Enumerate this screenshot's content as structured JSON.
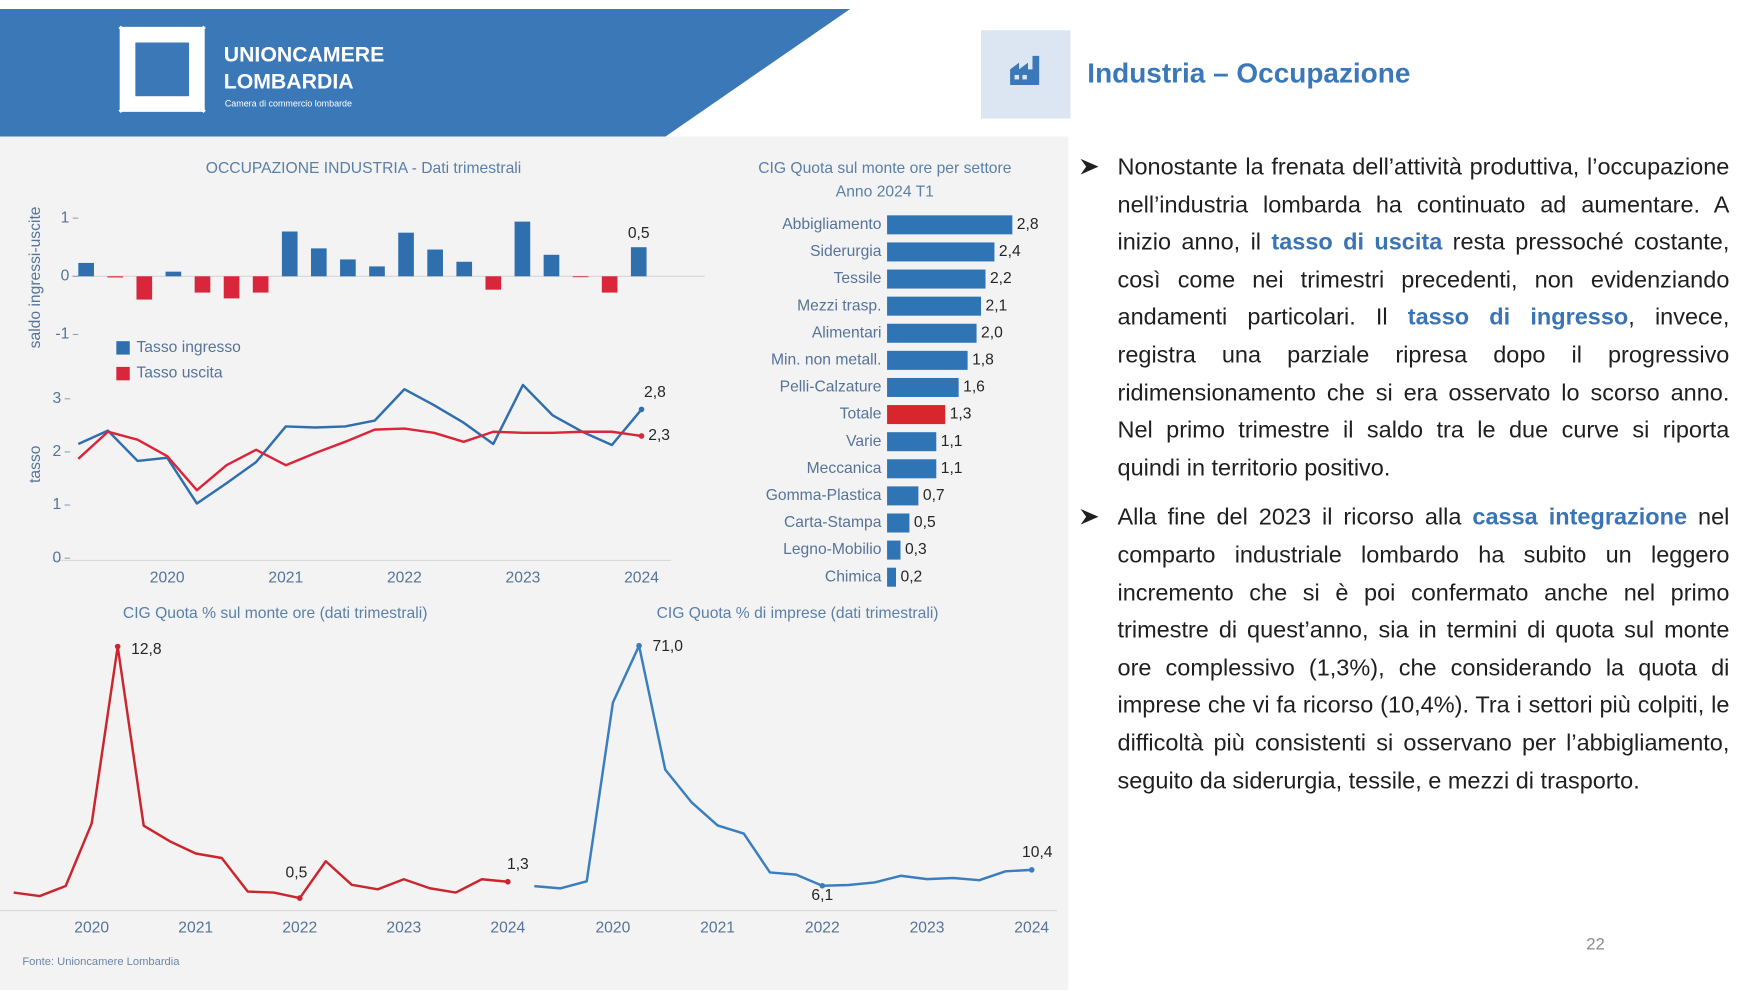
{
  "header": {
    "org_name": "UNIONCAMERE",
    "org_region": "LOMBARDIA",
    "tagline": "Camera di commercio lombarde",
    "title": "Industria – Occupazione"
  },
  "chart_data": [
    {
      "type": "bar",
      "title": "OCCUPAZIONE INDUSTRIA - Dati trimestrali",
      "ylabel": "saldo ingressi-uscite",
      "values": [
        0.23,
        -0.02,
        -0.4,
        0.08,
        -0.28,
        -0.38,
        -0.28,
        0.77,
        0.48,
        0.29,
        0.17,
        0.75,
        0.46,
        0.25,
        -0.23,
        0.94,
        0.37,
        -0.01,
        -0.28,
        0.5
      ],
      "value_labels": [
        null,
        null,
        null,
        null,
        null,
        null,
        null,
        null,
        null,
        null,
        null,
        null,
        null,
        null,
        null,
        null,
        null,
        null,
        null,
        "0,5"
      ],
      "positive_color": "#2f6fae",
      "negative_color": "#d9263a",
      "ylim": [
        -1.3,
        1.3
      ],
      "yticks": [
        -1,
        0,
        1
      ]
    },
    {
      "type": "line",
      "ylabel": "tasso",
      "categories": [
        null,
        null,
        null,
        "2020",
        null,
        null,
        null,
        "2021",
        null,
        null,
        null,
        "2022",
        null,
        null,
        null,
        "2023",
        null,
        null,
        null,
        "2024"
      ],
      "series": [
        {
          "name": "Tasso ingresso",
          "color": "#2f6fae",
          "values": [
            2.15,
            2.4,
            1.83,
            1.89,
            1.03,
            1.41,
            1.81,
            2.48,
            2.46,
            2.48,
            2.59,
            3.18,
            2.88,
            2.55,
            2.15,
            3.26,
            2.69,
            2.38,
            2.13,
            2.8
          ],
          "value_labels": [
            null,
            null,
            null,
            null,
            null,
            null,
            null,
            null,
            null,
            null,
            null,
            null,
            null,
            null,
            null,
            null,
            null,
            null,
            null,
            "2,8"
          ]
        },
        {
          "name": "Tasso uscita",
          "color": "#d9263a",
          "values": [
            1.87,
            2.38,
            2.23,
            1.92,
            1.28,
            1.75,
            2.04,
            1.75,
            1.98,
            2.19,
            2.42,
            2.44,
            2.36,
            2.19,
            2.38,
            2.36,
            2.36,
            2.38,
            2.38,
            2.3
          ],
          "value_labels": [
            null,
            null,
            null,
            null,
            null,
            null,
            null,
            null,
            null,
            null,
            null,
            null,
            null,
            null,
            null,
            null,
            null,
            null,
            null,
            "2,3"
          ]
        }
      ],
      "ylim": [
        0,
        3.4
      ],
      "yticks": [
        0,
        1,
        2,
        3
      ],
      "legend": "upper left"
    },
    {
      "type": "barh",
      "title": "CIG Quota sul monte ore per settore",
      "subtitle": "Anno 2024 T1",
      "categories": [
        "Abbigliamento",
        "Siderurgia",
        "Tessile",
        "Mezzi trasp.",
        "Alimentari",
        "Min. non metall.",
        "Pelli-Calzature",
        "Totale",
        "Varie",
        "Meccanica",
        "Gomma-Plastica",
        "Carta-Stampa",
        "Legno-Mobilio",
        "Chimica"
      ],
      "values": [
        2.8,
        2.4,
        2.2,
        2.1,
        2.0,
        1.8,
        1.6,
        1.3,
        1.1,
        1.1,
        0.7,
        0.5,
        0.3,
        0.2
      ],
      "value_labels": [
        "2,8",
        "2,4",
        "2,2",
        "2,1",
        "2,0",
        "1,8",
        "1,6",
        "1,3",
        "1,1",
        "1,1",
        "0,7",
        "0,5",
        "0,3",
        "0,2"
      ],
      "colors": [
        "#2f75b6",
        "#2f75b6",
        "#2f75b6",
        "#2f75b6",
        "#2f75b6",
        "#2f75b6",
        "#2f75b6",
        "#d9262c",
        "#2f75b6",
        "#2f75b6",
        "#2f75b6",
        "#2f75b6",
        "#2f75b6",
        "#2f75b6"
      ],
      "xlim": [
        0,
        3
      ]
    },
    {
      "type": "line",
      "title": "CIG Quota % sul monte ore (dati trimestrali)",
      "categories": [
        null,
        null,
        null,
        "2020",
        null,
        null,
        null,
        "2021",
        null,
        null,
        null,
        "2022",
        null,
        null,
        null,
        "2023",
        null,
        null,
        null,
        "2024"
      ],
      "series": [
        {
          "color": "#c9262e",
          "values": [
            0.77,
            0.6,
            1.09,
            4.15,
            12.8,
            4.04,
            3.28,
            2.68,
            2.46,
            0.82,
            0.77,
            0.5,
            2.3,
            1.15,
            0.93,
            1.42,
            0.98,
            0.77,
            1.42,
            1.3
          ],
          "value_labels": [
            null,
            null,
            null,
            null,
            "12,8",
            null,
            null,
            null,
            null,
            null,
            null,
            "0,5",
            null,
            null,
            null,
            null,
            null,
            null,
            null,
            "1,3"
          ]
        }
      ],
      "ylim": [
        0,
        14
      ]
    },
    {
      "type": "line",
      "title": "CIG Quota % di imprese (dati trimestrali)",
      "categories": [
        null,
        null,
        null,
        "2020",
        null,
        null,
        null,
        "2021",
        null,
        null,
        null,
        "2022",
        null,
        null,
        null,
        "2023",
        null,
        null,
        null,
        "2024"
      ],
      "series": [
        {
          "color": "#3a7ebf",
          "values": [
            6.0,
            5.4,
            7.3,
            55.6,
            71.0,
            37.5,
            28.7,
            22.4,
            20.2,
            9.7,
            9.1,
            6.1,
            6.3,
            7.0,
            8.8,
            7.9,
            8.2,
            7.6,
            10.0,
            10.4
          ],
          "value_labels": [
            null,
            null,
            null,
            null,
            "71,0",
            null,
            null,
            null,
            null,
            null,
            null,
            "6,1",
            null,
            null,
            null,
            null,
            null,
            null,
            null,
            "10,4"
          ]
        }
      ],
      "ylim": [
        0,
        75
      ]
    }
  ],
  "bullets": [
    {
      "parts": [
        "Nonostante la frenata dell’attività produttiva, l’occupazione nell’industria lombarda ha continuato ad aumentare. A inizio anno, il ",
        "tasso di uscita",
        " resta pressoché costante, così come nei trimestri precedenti, non evidenziando andamenti particolari. Il ",
        "tasso di ingresso",
        ", invece, registra una parziale ripresa dopo il progressivo ridimensionamento che si era osservato lo scorso anno. Nel primo trimestre il saldo tra le due curve si riporta quindi in territorio positivo."
      ]
    },
    {
      "parts": [
        "Alla fine del 2023 il ricorso alla ",
        "cassa integrazione",
        " nel comparto industriale lombardo ha subito un leggero incremento che si è poi confermato anche nel primo trimestre di quest’anno, sia in termini di quota sul monte ore complessivo (1,3%), che considerando la quota di imprese che vi fa ricorso (10,4%). Tra i settori più colpiti, le difficoltà più consistenti si osservano per l’abbigliamento, seguito da siderurgia, tessile, e mezzi di trasporto."
      ]
    }
  ],
  "footer": {
    "source": "Fonte: Unioncamere Lombardia",
    "page": "22"
  }
}
